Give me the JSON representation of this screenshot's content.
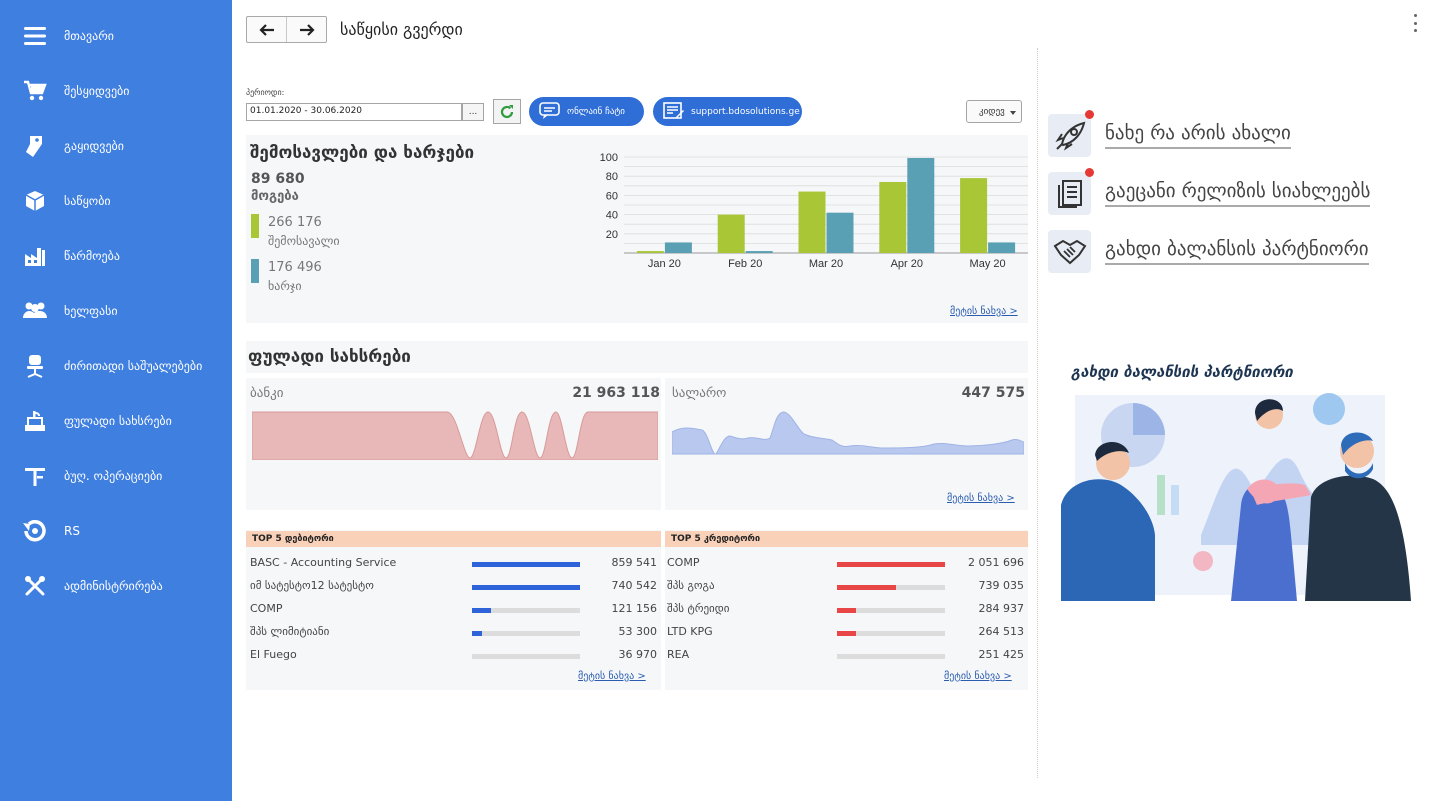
{
  "sidebar": {
    "items": [
      {
        "label": "მთავარი",
        "icon": "hamburger-icon"
      },
      {
        "label": "შესყიდვები",
        "icon": "cart-icon"
      },
      {
        "label": "გაყიდვები",
        "icon": "tag-icon"
      },
      {
        "label": "საწყობი",
        "icon": "box-icon"
      },
      {
        "label": "წარმოება",
        "icon": "factory-icon"
      },
      {
        "label": "ხელფასი",
        "icon": "users-icon"
      },
      {
        "label": "ძირითადი საშუალებები",
        "icon": "chair-icon"
      },
      {
        "label": "ფულადი სახსრები",
        "icon": "cash-register-icon"
      },
      {
        "label": "ბუღ. ოპერაციები",
        "icon": "ledger-icon"
      },
      {
        "label": "RS",
        "icon": "rs-logo-icon"
      },
      {
        "label": "ადმინისტრირება",
        "icon": "tools-icon"
      }
    ]
  },
  "header": {
    "title": "საწყისი გვერდი"
  },
  "toolbar": {
    "period_label": "პერიოდი:",
    "period_value": "01.01.2020 - 30.06.2020",
    "period_button": "...",
    "chat_label": "ონლაინ ჩატი",
    "support_label": "support.bdosolutions.ge",
    "select_value": "კიდევ"
  },
  "income": {
    "title": "შემოსავლები და ხარჯები",
    "profit_value": "89 680",
    "profit_label": "მოგება",
    "income_value": "266 176",
    "income_label": "შემოსავალი",
    "expense_value": "176 496",
    "expense_label": "ხარჯი",
    "more": "მეტის ნახვა >"
  },
  "chart_data": {
    "type": "bar",
    "categories": [
      "Jan 20",
      "Feb 20",
      "Mar 20",
      "Apr 20",
      "May 20"
    ],
    "series": [
      {
        "name": "შემოსავალი",
        "values": [
          2,
          40,
          64,
          74,
          78
        ],
        "color": "#a8c636"
      },
      {
        "name": "ხარჯი",
        "values": [
          11,
          2,
          42,
          99,
          11
        ],
        "color": "#5aa0b4"
      }
    ],
    "yticks": [
      "100",
      "80",
      "60",
      "40",
      "20"
    ],
    "ylim": [
      0,
      100
    ],
    "grid": true
  },
  "cash": {
    "title": "ფულადი სახსრები",
    "bank_label": "ბანკი",
    "bank_value": "21 963 118",
    "cashbox_label": "სალარო",
    "cashbox_value": "447 575",
    "more": "მეტის ნახვა >"
  },
  "debtors": {
    "title": "TOP 5 დებიტორი",
    "color": "#2f63d9",
    "rows": [
      {
        "name": "BASC - Accounting Service",
        "value": "859 541",
        "share": 1.0
      },
      {
        "name": "იმ სატესტო12 სატესტო",
        "value": "740 542",
        "share": 1.0
      },
      {
        "name": "COMP",
        "value": "121 156",
        "share": 0.18
      },
      {
        "name": "შპს ლიმიტიანი",
        "value": "53 300",
        "share": 0.09
      },
      {
        "name": "El Fuego",
        "value": "36 970",
        "share": 0.0
      }
    ],
    "more": "მეტის ნახვა >"
  },
  "creditors": {
    "title": "TOP 5 კრედიტორი",
    "color": "#e94747",
    "rows": [
      {
        "name": "COMP",
        "value": "2 051 696",
        "share": 1.0
      },
      {
        "name": "შპს გოგა",
        "value": "739 035",
        "share": 0.55
      },
      {
        "name": "შპს ტრეიდი",
        "value": "284 937",
        "share": 0.18
      },
      {
        "name": "LTD KPG",
        "value": "264 513",
        "share": 0.18
      },
      {
        "name": "REA",
        "value": "251 425",
        "share": 0.0
      }
    ],
    "more": "მეტის ნახვა >"
  },
  "news": {
    "items": [
      {
        "label": "ნახე რა არის ახალი",
        "icon": "rocket-icon"
      },
      {
        "label": "გაეცანი რელიზის სიახლეებს",
        "icon": "document-icon"
      },
      {
        "label": "გახდი ბალანსის პარტნიორი",
        "icon": "handshake-icon"
      }
    ]
  },
  "promo": {
    "title": "გახდი ბალანსის პარტნიორი"
  }
}
